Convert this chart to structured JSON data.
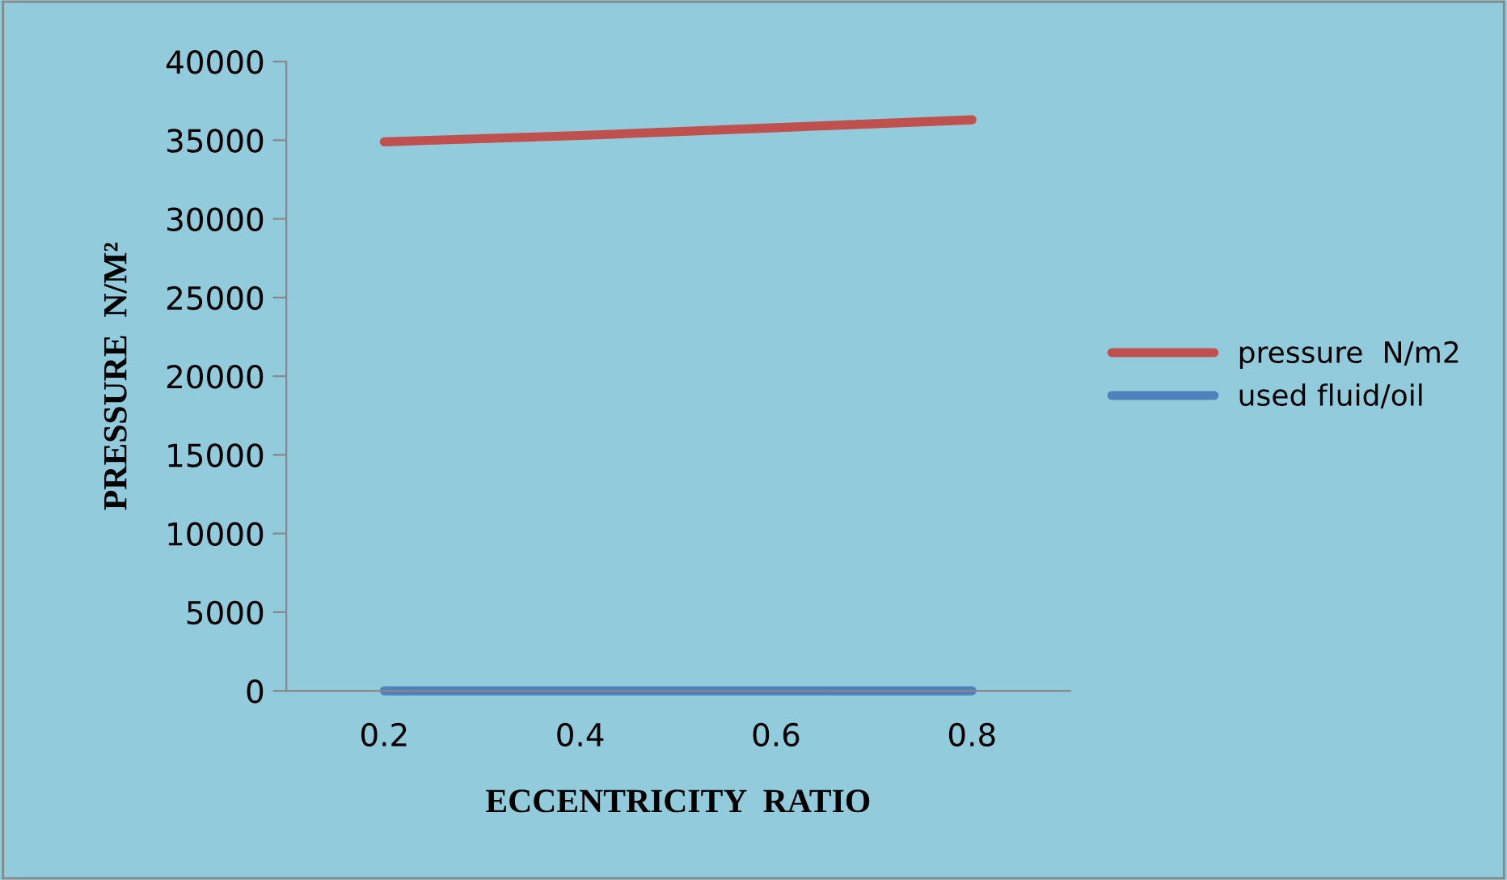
{
  "chart_data": {
    "type": "line",
    "xlabel": "ECCENTRICITY  RATIO",
    "ylabel": "PRESSURE  N/M²",
    "categories": [
      "0.2",
      "0.4",
      "0.6",
      "0.8"
    ],
    "series": [
      {
        "name": "pressure  N/m2",
        "color": "#c0504d",
        "values": [
          34900,
          35300,
          35800,
          36300
        ]
      },
      {
        "name": "used fluid/oil",
        "color": "#4f81bd",
        "values": [
          0,
          0,
          0,
          0
        ]
      }
    ],
    "ylim": [
      0,
      40000
    ],
    "yticks": [
      0,
      5000,
      10000,
      15000,
      20000,
      25000,
      30000,
      35000,
      40000
    ],
    "grid": false,
    "legend": "right",
    "marker": "none",
    "line_style": "solid"
  }
}
